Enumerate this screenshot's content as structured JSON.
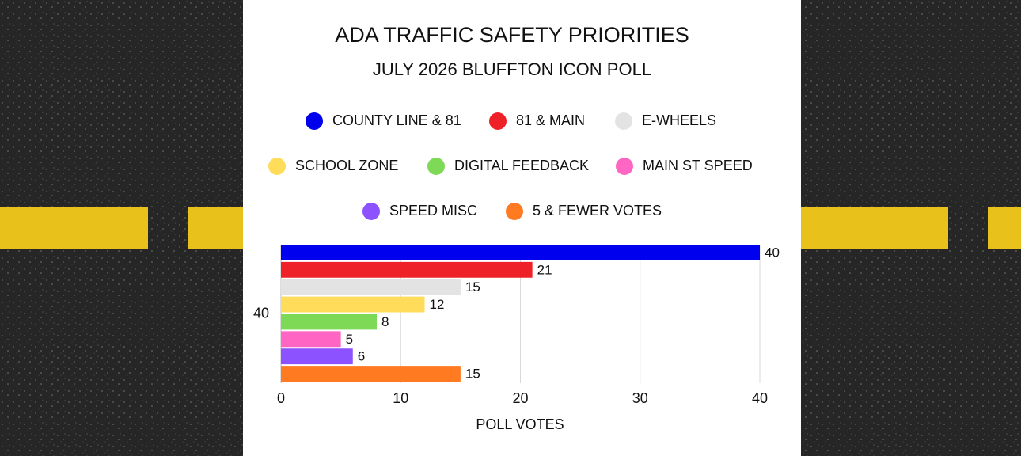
{
  "chart_data": {
    "type": "bar",
    "orientation": "horizontal",
    "title": "ADA TRAFFIC SAFETY PRIORITIES",
    "subtitle": "JULY 2026 BLUFFTON ICON POLL",
    "categories": [
      "40"
    ],
    "series": [
      {
        "name": "COUNTY LINE & 81",
        "color": "#0000ee",
        "values": [
          40
        ]
      },
      {
        "name": "81 & MAIN",
        "color": "#ee2129",
        "values": [
          21
        ]
      },
      {
        "name": "E-WHEELS",
        "color": "#e3e3e3",
        "values": [
          15
        ]
      },
      {
        "name": "SCHOOL ZONE",
        "color": "#ffdc5a",
        "values": [
          12
        ]
      },
      {
        "name": "DIGITAL FEEDBACK",
        "color": "#7ed957",
        "values": [
          8
        ]
      },
      {
        "name": "MAIN ST SPEED",
        "color": "#ff66c4",
        "values": [
          5
        ]
      },
      {
        "name": "SPEED MISC",
        "color": "#8c52ff",
        "values": [
          6
        ]
      },
      {
        "name": "5 & FEWER VOTES",
        "color": "#ff7a21",
        "values": [
          15
        ]
      }
    ],
    "xlim": [
      0,
      40
    ],
    "xticks": [
      0,
      10,
      20,
      30,
      40
    ],
    "x_label": "POLL VOTES",
    "grid": true,
    "data_labels": true
  }
}
